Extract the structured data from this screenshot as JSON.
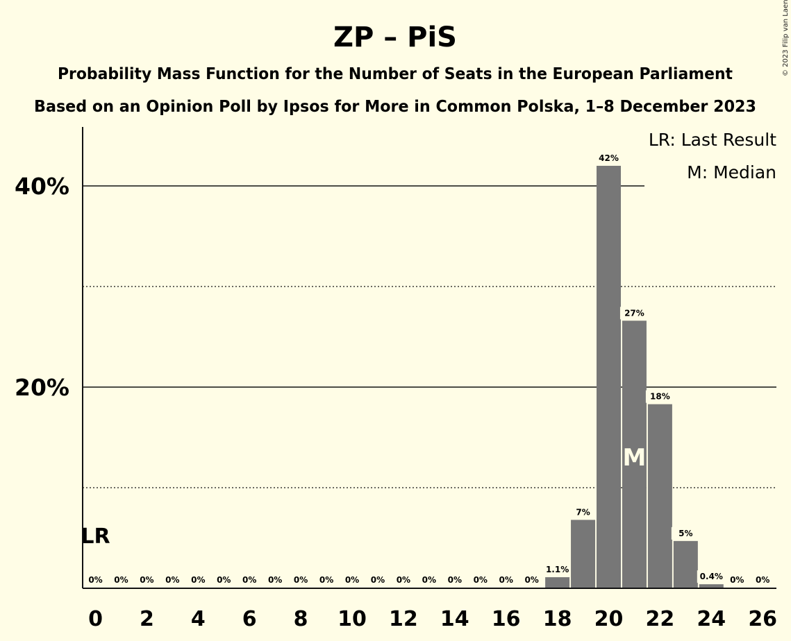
{
  "chart_data": {
    "type": "bar",
    "title": "ZP – PiS",
    "subtitle_1": "Probability Mass Function for the Number of Seats in the European Parliament",
    "subtitle_2": "Based on an Opinion Poll by Ipsos for More in Common Polska, 1–8 December 2023",
    "copyright": "© 2023 Filip van Laenen",
    "legend": [
      "LR: Last Result",
      "M: Median"
    ],
    "x": [
      0,
      1,
      2,
      3,
      4,
      5,
      6,
      7,
      8,
      9,
      10,
      11,
      12,
      13,
      14,
      15,
      16,
      17,
      18,
      19,
      20,
      21,
      22,
      23,
      24,
      25,
      26
    ],
    "values": [
      0,
      0,
      0,
      0,
      0,
      0,
      0,
      0,
      0,
      0,
      0,
      0,
      0,
      0,
      0,
      0,
      0,
      0,
      1.1,
      6.8,
      42,
      26.6,
      18.3,
      4.7,
      0.4,
      0,
      0
    ],
    "data_labels": [
      "0%",
      "0%",
      "0%",
      "0%",
      "0%",
      "0%",
      "0%",
      "0%",
      "0%",
      "0%",
      "0%",
      "0%",
      "0%",
      "0%",
      "0%",
      "0%",
      "0%",
      "0%",
      "1.1%",
      "7%",
      "42%",
      "27%",
      "18%",
      "5%",
      "0.4%",
      "0%",
      "0%"
    ],
    "x_tick_labels": [
      "0",
      "2",
      "4",
      "6",
      "8",
      "10",
      "12",
      "14",
      "16",
      "18",
      "20",
      "22",
      "24",
      "26"
    ],
    "y_tick_labels": [
      "20%",
      "40%"
    ],
    "ylim": [
      0,
      45.9
    ],
    "major_gridlines": [
      20,
      40
    ],
    "minor_gridlines": [
      10,
      30
    ],
    "last_result": {
      "seat": 0,
      "label": "LR"
    },
    "median": {
      "seat": 21,
      "label": "M"
    },
    "bar_color": "#777777",
    "background_color": "#fffde6",
    "legend_position": "top-right"
  }
}
